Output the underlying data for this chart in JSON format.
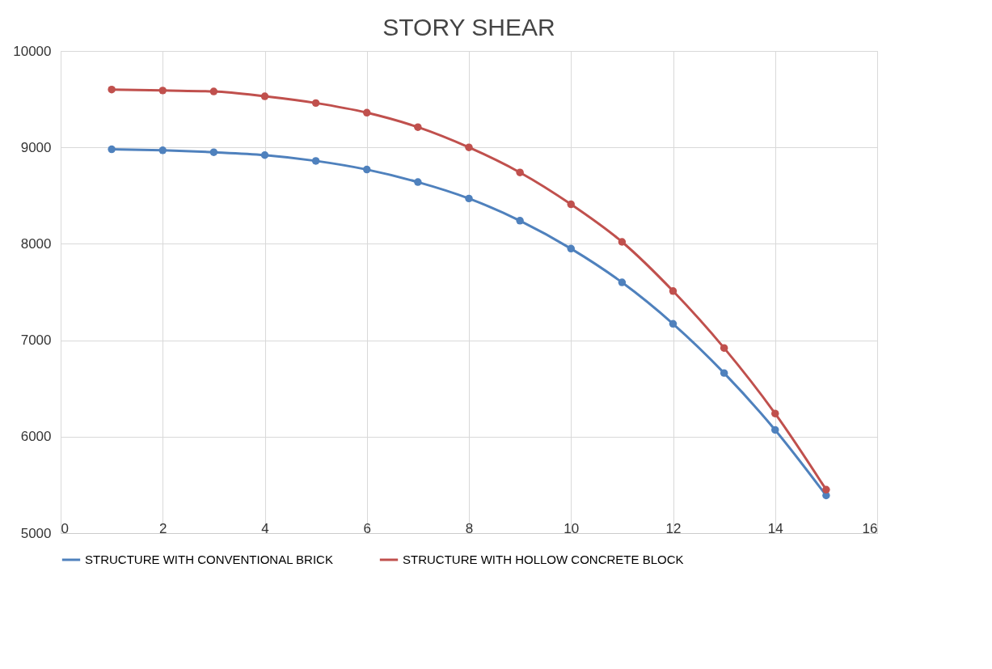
{
  "chart_data": {
    "type": "line",
    "title": "STORY SHEAR",
    "x": [
      1,
      2,
      3,
      4,
      5,
      6,
      7,
      8,
      9,
      10,
      11,
      12,
      13,
      14,
      15
    ],
    "series": [
      {
        "name": "STRUCTURE WITH CONVENTIONAL BRICK",
        "color": "#4f81bd",
        "values": [
          8980,
          8970,
          8950,
          8920,
          8860,
          8770,
          8640,
          8470,
          8240,
          7950,
          7600,
          7170,
          6660,
          6070,
          5390
        ]
      },
      {
        "name": "STRUCTURE WITH HOLLOW CONCRETE BLOCK",
        "color": "#c0504d",
        "values": [
          9600,
          9590,
          9580,
          9530,
          9460,
          9360,
          9210,
          9000,
          8740,
          8410,
          8020,
          7510,
          6920,
          6240,
          5450
        ]
      }
    ],
    "xlim": [
      0,
      16
    ],
    "xticks": [
      0,
      2,
      4,
      6,
      8,
      10,
      12,
      14,
      16
    ],
    "ylim": [
      5000,
      10000
    ],
    "yticks": [
      5000,
      6000,
      7000,
      8000,
      9000,
      10000
    ],
    "grid": true,
    "legend": "bottom",
    "marker": "circle",
    "line_style": "solid"
  }
}
